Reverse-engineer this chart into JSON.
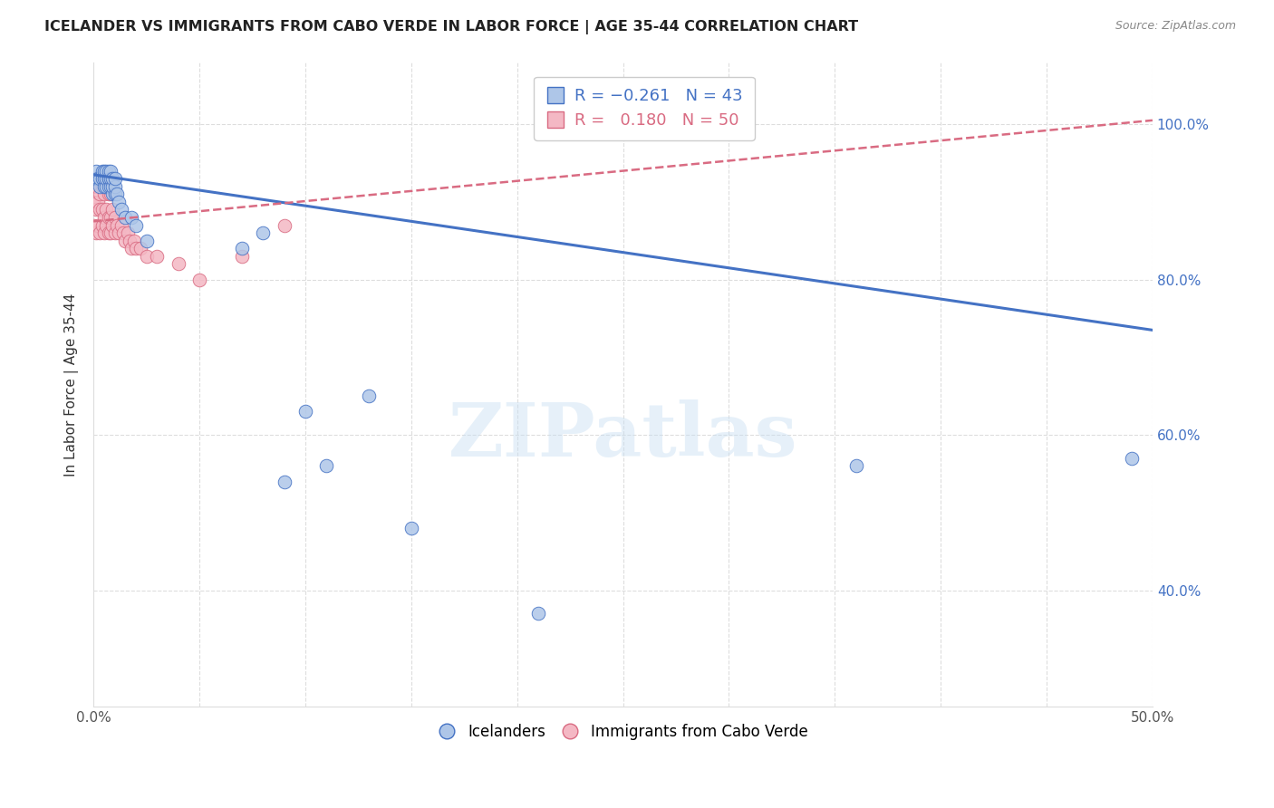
{
  "title": "ICELANDER VS IMMIGRANTS FROM CABO VERDE IN LABOR FORCE | AGE 35-44 CORRELATION CHART",
  "source": "Source: ZipAtlas.com",
  "xlabel_label": "Icelanders",
  "ylabel_label": "In Labor Force | Age 35-44",
  "xlim": [
    0.0,
    0.5
  ],
  "ylim": [
    0.25,
    1.08
  ],
  "blue_R": -0.261,
  "blue_N": 43,
  "pink_R": 0.18,
  "pink_N": 50,
  "blue_color": "#aec6e8",
  "blue_line_color": "#4472c4",
  "pink_color": "#f4b8c4",
  "pink_line_color": "#d96b82",
  "grid_color": "#dddddd",
  "watermark": "ZIPatlas",
  "blue_scatter_x": [
    0.001,
    0.001,
    0.002,
    0.003,
    0.003,
    0.004,
    0.004,
    0.005,
    0.005,
    0.005,
    0.006,
    0.006,
    0.006,
    0.007,
    0.007,
    0.007,
    0.007,
    0.008,
    0.008,
    0.008,
    0.009,
    0.009,
    0.009,
    0.01,
    0.01,
    0.01,
    0.011,
    0.012,
    0.013,
    0.015,
    0.018,
    0.02,
    0.025,
    0.07,
    0.08,
    0.09,
    0.1,
    0.11,
    0.13,
    0.15,
    0.21,
    0.36,
    0.49
  ],
  "blue_scatter_y": [
    0.93,
    0.94,
    0.93,
    0.92,
    0.93,
    0.93,
    0.94,
    0.92,
    0.93,
    0.94,
    0.92,
    0.93,
    0.94,
    0.92,
    0.93,
    0.93,
    0.94,
    0.92,
    0.93,
    0.94,
    0.91,
    0.92,
    0.93,
    0.91,
    0.92,
    0.93,
    0.91,
    0.9,
    0.89,
    0.88,
    0.88,
    0.87,
    0.85,
    0.84,
    0.86,
    0.54,
    0.63,
    0.56,
    0.65,
    0.48,
    0.37,
    0.56,
    0.57
  ],
  "pink_scatter_x": [
    0.0,
    0.0,
    0.0,
    0.001,
    0.001,
    0.001,
    0.002,
    0.002,
    0.002,
    0.003,
    0.003,
    0.003,
    0.003,
    0.004,
    0.004,
    0.004,
    0.005,
    0.005,
    0.005,
    0.005,
    0.006,
    0.006,
    0.006,
    0.007,
    0.007,
    0.007,
    0.008,
    0.008,
    0.008,
    0.009,
    0.009,
    0.01,
    0.01,
    0.011,
    0.012,
    0.013,
    0.014,
    0.015,
    0.016,
    0.017,
    0.018,
    0.019,
    0.02,
    0.022,
    0.025,
    0.03,
    0.04,
    0.05,
    0.07,
    0.09
  ],
  "pink_scatter_y": [
    0.87,
    0.9,
    0.93,
    0.86,
    0.89,
    0.92,
    0.87,
    0.9,
    0.93,
    0.86,
    0.89,
    0.91,
    0.93,
    0.87,
    0.89,
    0.92,
    0.86,
    0.88,
    0.91,
    0.93,
    0.87,
    0.89,
    0.92,
    0.86,
    0.88,
    0.91,
    0.86,
    0.88,
    0.91,
    0.87,
    0.89,
    0.86,
    0.88,
    0.87,
    0.86,
    0.87,
    0.86,
    0.85,
    0.86,
    0.85,
    0.84,
    0.85,
    0.84,
    0.84,
    0.83,
    0.83,
    0.82,
    0.8,
    0.83,
    0.87
  ],
  "blue_line_x0": 0.0,
  "blue_line_y0": 0.935,
  "blue_line_x1": 0.5,
  "blue_line_y1": 0.735,
  "pink_line_x0": 0.0,
  "pink_line_y0": 0.875,
  "pink_line_x1": 0.5,
  "pink_line_y1": 1.005
}
